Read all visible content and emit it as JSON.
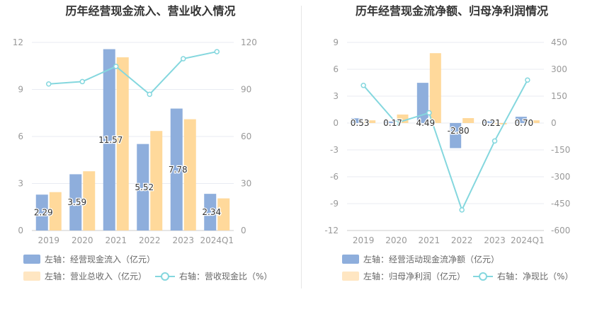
{
  "colors": {
    "bar_left": "#8eaedc",
    "bar_right": "#ffd99b",
    "line": "#84d7de",
    "grid": "#e8ebf2",
    "axis_text": "#999999"
  },
  "chart_data": [
    {
      "type": "bar",
      "title": "历年经营现金流入、营业收入情况",
      "categories": [
        "2019",
        "2020",
        "2021",
        "2022",
        "2023",
        "2024Q1"
      ],
      "y_left": {
        "ylim": [
          0,
          12
        ],
        "ticks": [
          0,
          3,
          6,
          9,
          12
        ]
      },
      "y_right": {
        "ylim": [
          0,
          120
        ],
        "ticks": [
          0,
          30,
          60,
          90,
          120
        ]
      },
      "series": [
        {
          "name": "左轴：经营现金流入（亿元）",
          "axis": "left",
          "kind": "bar",
          "values": [
            2.29,
            3.59,
            11.57,
            5.52,
            7.78,
            2.34
          ],
          "labels": [
            "2.29",
            "3.59",
            "11.57",
            "5.52",
            "7.78",
            "2.34"
          ]
        },
        {
          "name": "左轴：营业总收入（亿元）",
          "axis": "left",
          "kind": "bar",
          "values": [
            2.45,
            3.78,
            11.05,
            6.35,
            7.1,
            2.05
          ]
        },
        {
          "name": "右轴：营收现金比（%）",
          "axis": "right",
          "kind": "line",
          "values": [
            93.5,
            95,
            104.7,
            86.9,
            109.6,
            114.1
          ]
        }
      ],
      "grid": true,
      "legend": "bottom"
    },
    {
      "type": "bar",
      "title": "历年经营现金流净额、归母净利润情况",
      "categories": [
        "2019",
        "2020",
        "2021",
        "2022",
        "2023",
        "2024Q1"
      ],
      "y_left": {
        "ylim": [
          -12,
          9
        ],
        "ticks": [
          -12,
          -9,
          -6,
          -3,
          0,
          3,
          6,
          9
        ]
      },
      "y_right": {
        "ylim": [
          -600,
          450
        ],
        "ticks": [
          -600,
          -450,
          -300,
          -150,
          0,
          150,
          300,
          450
        ]
      },
      "series": [
        {
          "name": "左轴：经营活动现金流净额（亿元）",
          "axis": "left",
          "kind": "bar",
          "values": [
            0.53,
            0.17,
            4.49,
            -2.8,
            0.21,
            0.7
          ],
          "labels": [
            "0.53",
            "0.17",
            "4.49",
            "-2.80",
            "0.21",
            "0.70"
          ]
        },
        {
          "name": "左轴：归母净利润（亿元）",
          "axis": "left",
          "kind": "bar",
          "values": [
            0.3,
            0.95,
            7.8,
            0.55,
            -0.15,
            0.3
          ]
        },
        {
          "name": "右轴：净现比（%）",
          "axis": "right",
          "kind": "line",
          "values": [
            210,
            0,
            57,
            -485,
            -100,
            240
          ]
        }
      ],
      "grid": true,
      "legend": "bottom"
    }
  ]
}
